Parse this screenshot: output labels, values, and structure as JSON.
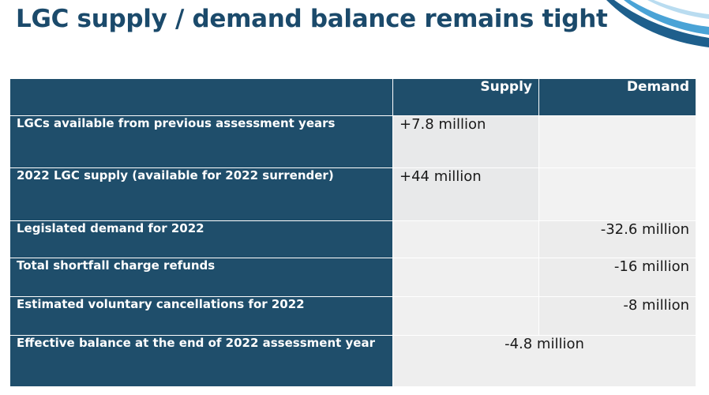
{
  "slide": {
    "title": "LGC supply / demand balance remains tight"
  },
  "table": {
    "headers": {
      "supply": "Supply",
      "demand": "Demand"
    },
    "rows": [
      {
        "label": "LGCs available from previous assessment years",
        "supply": "+7.8 million",
        "demand": ""
      },
      {
        "label": "2022 LGC supply (available for 2022 surrender)",
        "supply": "+44 million",
        "demand": ""
      },
      {
        "label": "Legislated demand for 2022",
        "supply": "",
        "demand": "-32.6 million"
      },
      {
        "label": "Total shortfall charge refunds",
        "supply": "",
        "demand": "-16 million"
      },
      {
        "label": "Estimated voluntary cancellations for 2022",
        "supply": "",
        "demand": "-8 million"
      }
    ],
    "balance": {
      "label": "Effective balance at the end of 2022 assessment year",
      "value": "-4.8 million"
    }
  },
  "colors": {
    "title": "#1b4a6b",
    "header_fill": "#1f4e6b",
    "value_fill": "#e8e9ea",
    "accent_swoosh": "#2a7fb0"
  }
}
